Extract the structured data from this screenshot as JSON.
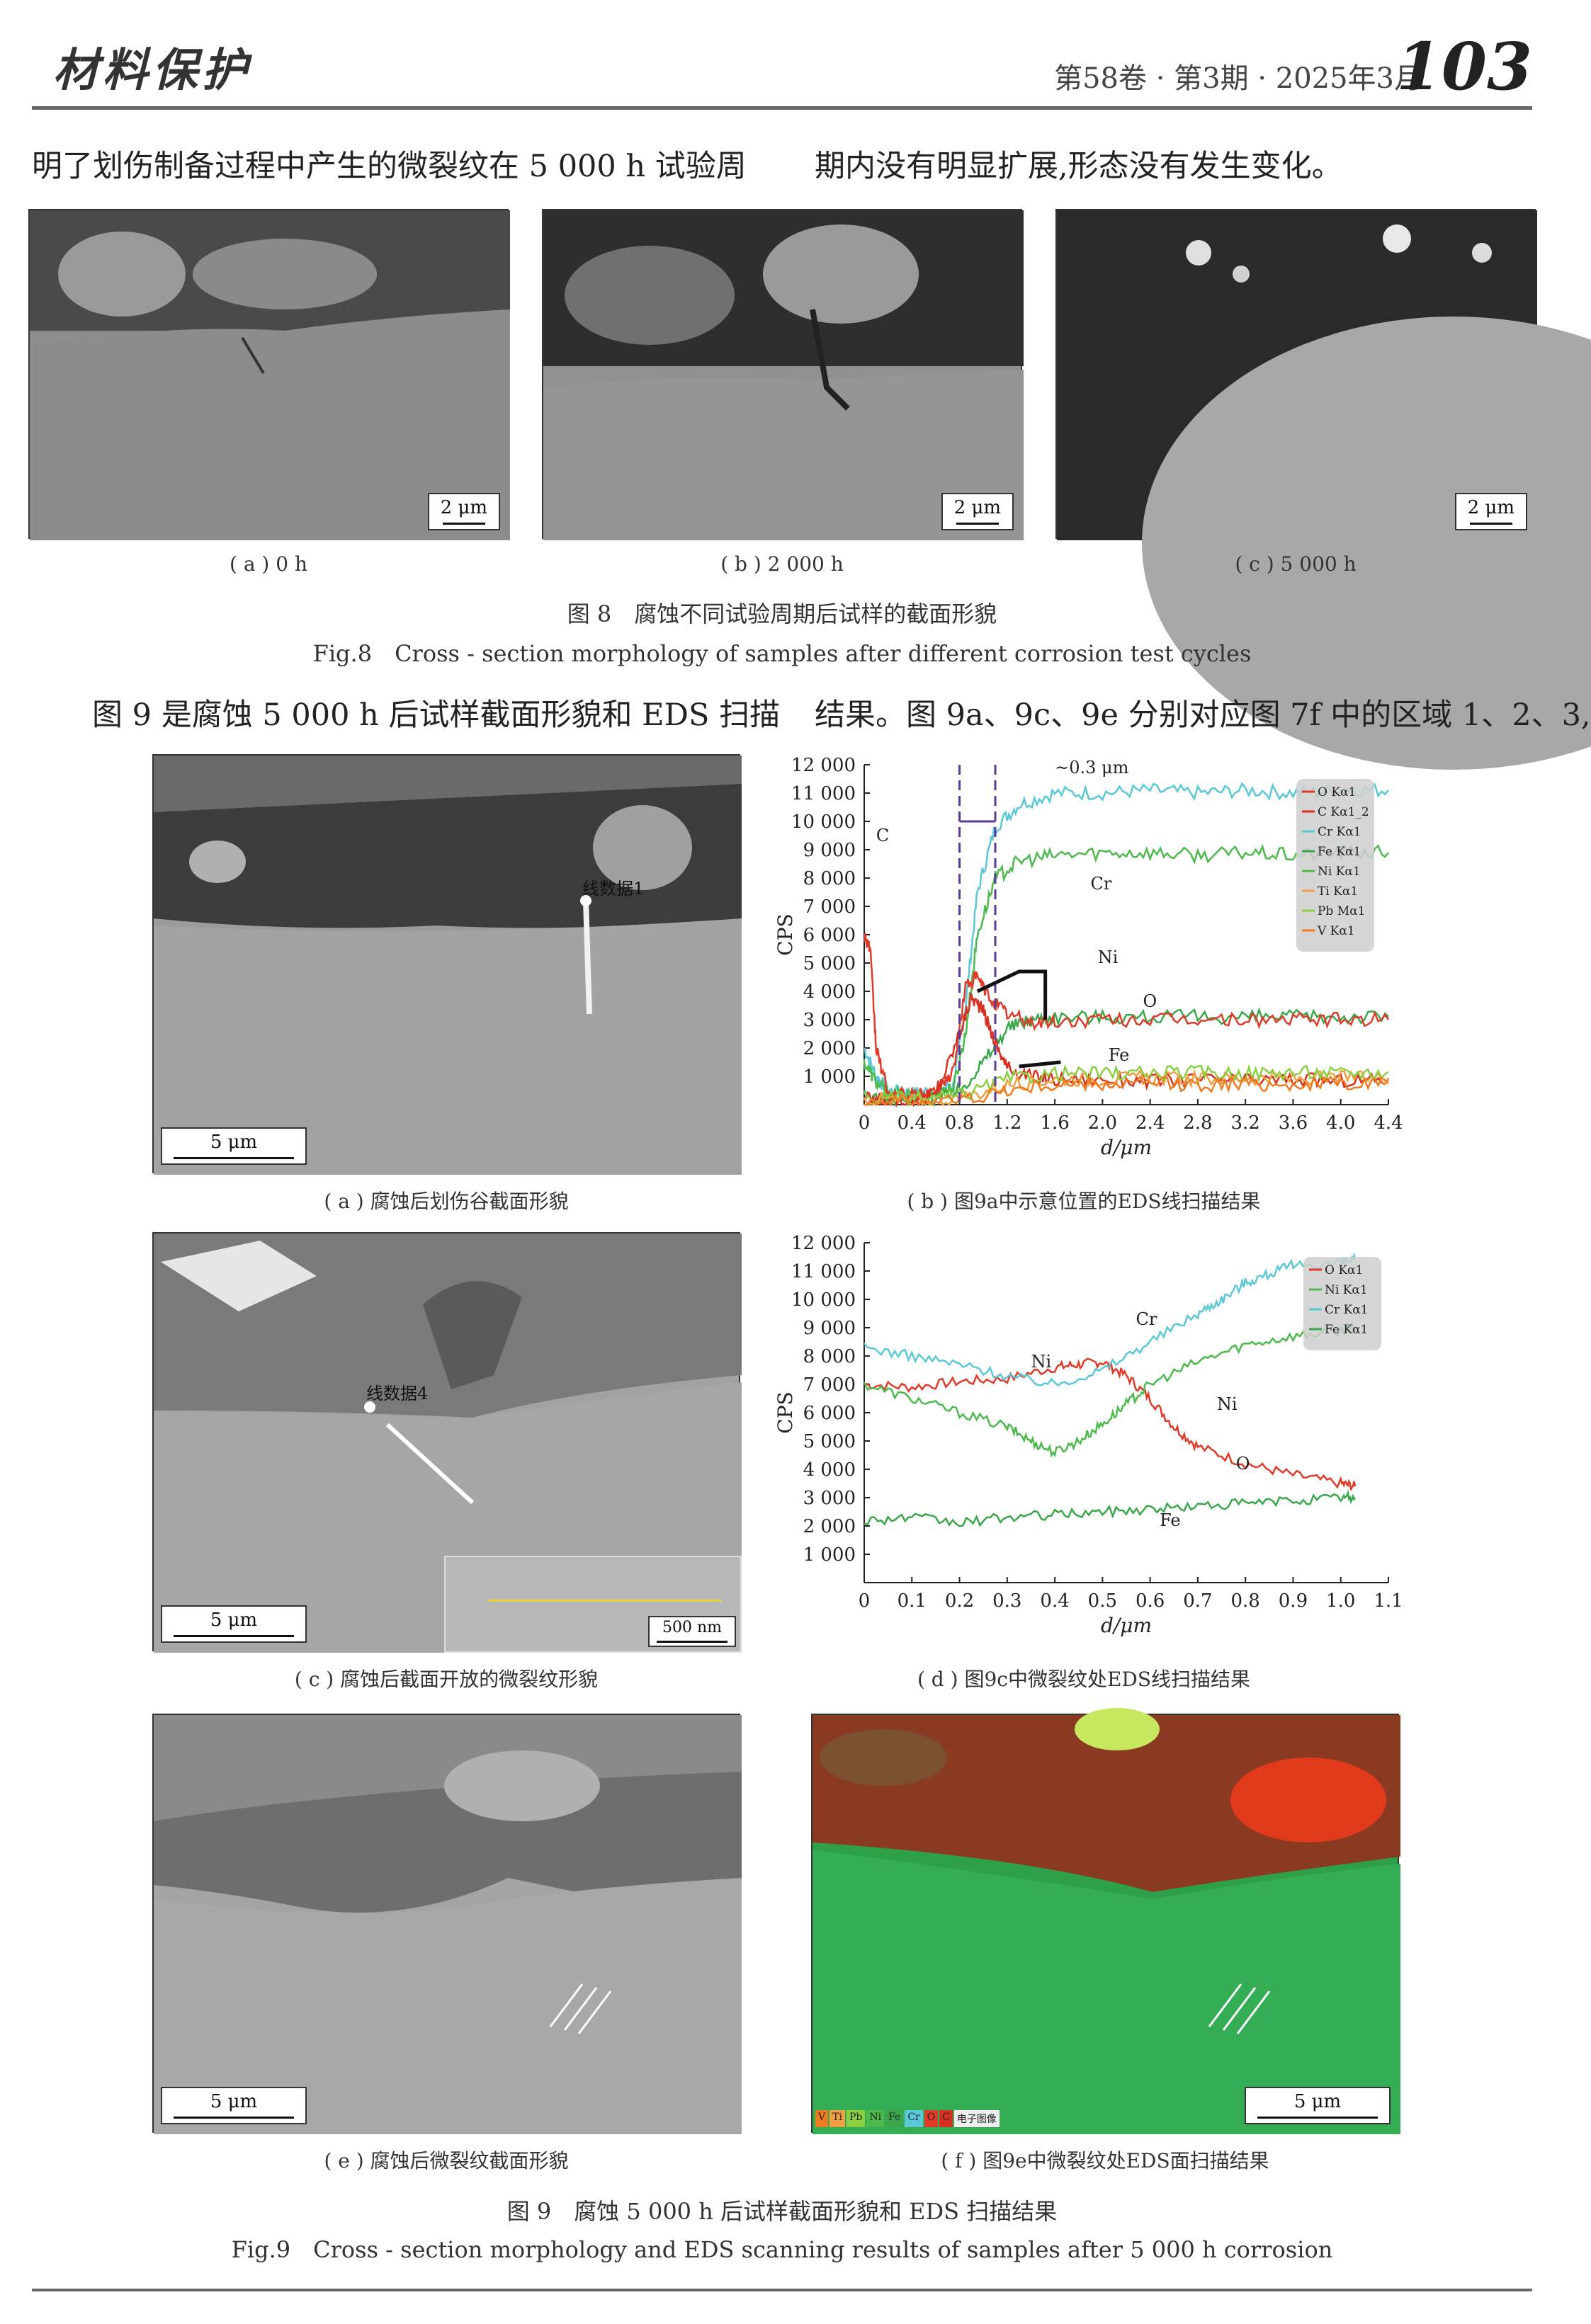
{
  "header": {
    "journal": "材料保护",
    "issue": "第58卷 · 第3期 · 2025年3月",
    "page_number": "103"
  },
  "paragraph_top": {
    "left": "明了划伤制备过程中产生的微裂纹在 5 000 h 试验周",
    "right": "期内没有明显扩展,形态没有发生变化。"
  },
  "figure8": {
    "panels": [
      {
        "scale": "2 μm",
        "caption": "( a ) 0 h"
      },
      {
        "scale": "2 μm",
        "caption": "( b ) 2 000 h"
      },
      {
        "scale": "2 μm",
        "caption": "( c ) 5 000 h"
      }
    ],
    "title_cn": "图 8　腐蚀不同试验周期后试样的截面形貌",
    "title_en": "Fig.8　Cross - section morphology of samples after different corrosion test cycles"
  },
  "paragraph_mid": {
    "left": "图 9 是腐蚀 5 000 h 后试样截面形貌和 EDS 扫描",
    "right": "结果。图 9a、9c、9e 分别对应图 7f 中的区域 1、2、3,"
  },
  "figure9": {
    "a": {
      "label": "线数据1",
      "scale": "5 μm",
      "caption": "( a ) 腐蚀后划伤谷截面形貌"
    },
    "b": {
      "caption": "( b ) 图9a中示意位置的EDS线扫描结果"
    },
    "c": {
      "label": "线数据4",
      "scale": "5 μm",
      "inset_scale": "500 nm",
      "caption": "( c ) 腐蚀后截面开放的微裂纹形貌"
    },
    "d": {
      "caption": "( d ) 图9c中微裂纹处EDS线扫描结果"
    },
    "e": {
      "scale": "5 μm",
      "caption": "( e ) 腐蚀后微裂纹截面形貌"
    },
    "f": {
      "scale": "5 μm",
      "caption": "( f ) 图9e中微裂纹处EDS面扫描结果",
      "legend": [
        "V",
        "Ti",
        "Pb",
        "Ni",
        "Fe",
        "Cr",
        "O",
        "C",
        "电子图像"
      ]
    },
    "title_cn": "图 9　腐蚀 5 000 h 后试样截面形貌和 EDS 扫描结果",
    "title_en": "Fig.9　Cross - section morphology and EDS scanning results of samples after 5 000 h corrosion"
  },
  "colors": {
    "cr": "#5bc8d8",
    "ni": "#4cba4c",
    "fe": "#3aa84a",
    "o": "#e03a2a",
    "c": "#d83020",
    "ti": "#f0a040",
    "pb": "#8ad040",
    "v": "#f07a20",
    "dash": "#5a3a9a"
  },
  "chart_data": [
    {
      "type": "line",
      "xlabel": "d/μm",
      "ylabel": "CPS",
      "xlim": [
        0,
        4.4
      ],
      "ylim": [
        0,
        12000
      ],
      "xticks": [
        "0",
        "0.4",
        "0.8",
        "1.2",
        "1.6",
        "2.0",
        "2.4",
        "2.8",
        "3.2",
        "3.6",
        "4.0",
        "4.4"
      ],
      "yticks": [
        "1 000",
        "2 000",
        "3 000",
        "4 000",
        "5 000",
        "6 000",
        "7 000",
        "8 000",
        "9 000",
        "10 000",
        "11 000",
        "12 000"
      ],
      "legend": [
        "O Kα1",
        "C Kα1_2",
        "Cr Kα1",
        "Fe Kα1",
        "Ni Kα1",
        "Ti Kα1",
        "Pb Mα1",
        "V Kα1"
      ],
      "annotations": [
        "~0.3 μm",
        "Cr",
        "Ni",
        "O",
        "Fe",
        "C"
      ],
      "series": [
        {
          "name": "Cr Kα1",
          "x": [
            0,
            0.1,
            0.2,
            0.4,
            0.6,
            0.75,
            0.85,
            0.95,
            1.1,
            1.3,
            1.6,
            2.0,
            2.4,
            2.8,
            3.2,
            3.6,
            4.0,
            4.4
          ],
          "y": [
            2000,
            1000,
            500,
            400,
            500,
            700,
            3500,
            7500,
            9800,
            10600,
            11000,
            11000,
            11100,
            11000,
            11100,
            11000,
            11100,
            11100
          ]
        },
        {
          "name": "Ni Kα1",
          "x": [
            0,
            0.1,
            0.2,
            0.4,
            0.6,
            0.75,
            0.85,
            0.95,
            1.1,
            1.3,
            1.6,
            2.0,
            2.4,
            2.8,
            3.2,
            3.6,
            4.0,
            4.4
          ],
          "y": [
            1500,
            800,
            400,
            300,
            400,
            600,
            2500,
            6000,
            8000,
            8600,
            8800,
            8900,
            8900,
            8800,
            8900,
            8800,
            8900,
            8900
          ]
        },
        {
          "name": "Fe Kα1",
          "x": [
            0,
            0.2,
            0.4,
            0.6,
            0.8,
            1.0,
            1.2,
            1.4,
            1.6,
            2.0,
            2.4,
            2.8,
            3.2,
            3.6,
            4.0,
            4.4
          ],
          "y": [
            300,
            200,
            150,
            200,
            500,
            1500,
            2700,
            3000,
            3100,
            3100,
            3100,
            3100,
            3100,
            3100,
            3100,
            3100
          ]
        },
        {
          "name": "O Kα1",
          "x": [
            0,
            0.05,
            0.1,
            0.2,
            0.4,
            0.6,
            0.75,
            0.85,
            0.95,
            1.05,
            1.2,
            1.4,
            1.6,
            2.0,
            2.4,
            2.8,
            3.2,
            3.6,
            4.0,
            4.4
          ],
          "y": [
            6000,
            5500,
            2000,
            400,
            300,
            500,
            1200,
            4200,
            4500,
            3800,
            3200,
            2900,
            2900,
            3000,
            3000,
            3000,
            3000,
            3000,
            3000,
            3000
          ]
        },
        {
          "name": "C Kα1_2",
          "x": [
            0,
            0.2,
            0.4,
            0.6,
            0.8,
            0.9,
            1.0,
            1.1,
            1.2,
            1.4,
            1.6,
            2.0,
            2.4,
            2.8,
            3.2,
            3.6,
            4.0,
            4.4
          ],
          "y": [
            200,
            150,
            150,
            300,
            2500,
            3800,
            3300,
            2200,
            1300,
            1000,
            900,
            900,
            850,
            900,
            850,
            900,
            850,
            900
          ]
        },
        {
          "name": "Ti Kα1",
          "x": [
            0,
            0.4,
            0.8,
            1.2,
            1.6,
            2.0,
            2.4,
            2.8,
            3.2,
            3.6,
            4.0,
            4.4
          ],
          "y": [
            200,
            150,
            200,
            700,
            900,
            900,
            950,
            900,
            950,
            900,
            950,
            950
          ]
        },
        {
          "name": "Pb Mα1",
          "x": [
            0,
            0.4,
            0.8,
            1.2,
            1.6,
            2.0,
            2.4,
            2.8,
            3.2,
            3.6,
            4.0,
            4.4
          ],
          "y": [
            250,
            200,
            300,
            900,
            1100,
            1100,
            1100,
            1150,
            1100,
            1150,
            1100,
            1150
          ]
        },
        {
          "name": "V Kα1",
          "x": [
            0,
            0.4,
            0.8,
            1.2,
            1.6,
            2.0,
            2.4,
            2.8,
            3.2,
            3.6,
            4.0,
            4.4
          ],
          "y": [
            150,
            100,
            150,
            500,
            700,
            700,
            750,
            700,
            750,
            700,
            750,
            750
          ]
        }
      ]
    },
    {
      "type": "line",
      "xlabel": "d/μm",
      "ylabel": "CPS",
      "xlim": [
        0,
        1.1
      ],
      "ylim": [
        0,
        12000
      ],
      "xticks": [
        "0",
        "0.1",
        "0.2",
        "0.3",
        "0.4",
        "0.5",
        "0.6",
        "0.7",
        "0.8",
        "0.9",
        "1.0",
        "1.1"
      ],
      "yticks": [
        "1 000",
        "2 000",
        "3 000",
        "4 000",
        "5 000",
        "6 000",
        "7 000",
        "8 000",
        "9 000",
        "10 000",
        "11 000",
        "12 000"
      ],
      "legend": [
        "O Kα1",
        "Ni Kα1",
        "Cr Kα1",
        "Fe Kα1"
      ],
      "annotations": [
        "Cr",
        "Ni",
        "Ni",
        "O",
        "Fe"
      ],
      "series": [
        {
          "name": "O Kα1",
          "x": [
            0,
            0.1,
            0.2,
            0.3,
            0.4,
            0.45,
            0.5,
            0.55,
            0.6,
            0.65,
            0.7,
            0.8,
            0.9,
            1.0,
            1.03
          ],
          "y": [
            7000,
            6900,
            7100,
            7200,
            7600,
            7700,
            7800,
            7300,
            6500,
            5500,
            4800,
            4200,
            3800,
            3500,
            3400
          ]
        },
        {
          "name": "Ni Kα1",
          "x": [
            0,
            0.1,
            0.2,
            0.3,
            0.35,
            0.4,
            0.45,
            0.5,
            0.55,
            0.6,
            0.7,
            0.8,
            0.9,
            1.0,
            1.03
          ],
          "y": [
            7000,
            6500,
            6000,
            5500,
            5000,
            4600,
            5000,
            5600,
            6300,
            7000,
            7800,
            8400,
            8700,
            8900,
            9000
          ]
        },
        {
          "name": "Cr Kα1",
          "x": [
            0,
            0.1,
            0.2,
            0.3,
            0.4,
            0.5,
            0.6,
            0.7,
            0.75,
            0.8,
            0.85,
            0.9,
            1.0,
            1.03
          ],
          "y": [
            8300,
            8000,
            7700,
            7300,
            7000,
            7500,
            8500,
            9500,
            10000,
            10600,
            10900,
            11200,
            11300,
            11400
          ]
        },
        {
          "name": "Fe Kα1",
          "x": [
            0,
            0.1,
            0.2,
            0.3,
            0.4,
            0.5,
            0.6,
            0.7,
            0.8,
            0.9,
            1.0,
            1.03
          ],
          "y": [
            2200,
            2300,
            2100,
            2300,
            2400,
            2500,
            2600,
            2700,
            2800,
            2900,
            3000,
            3000
          ]
        }
      ]
    }
  ]
}
